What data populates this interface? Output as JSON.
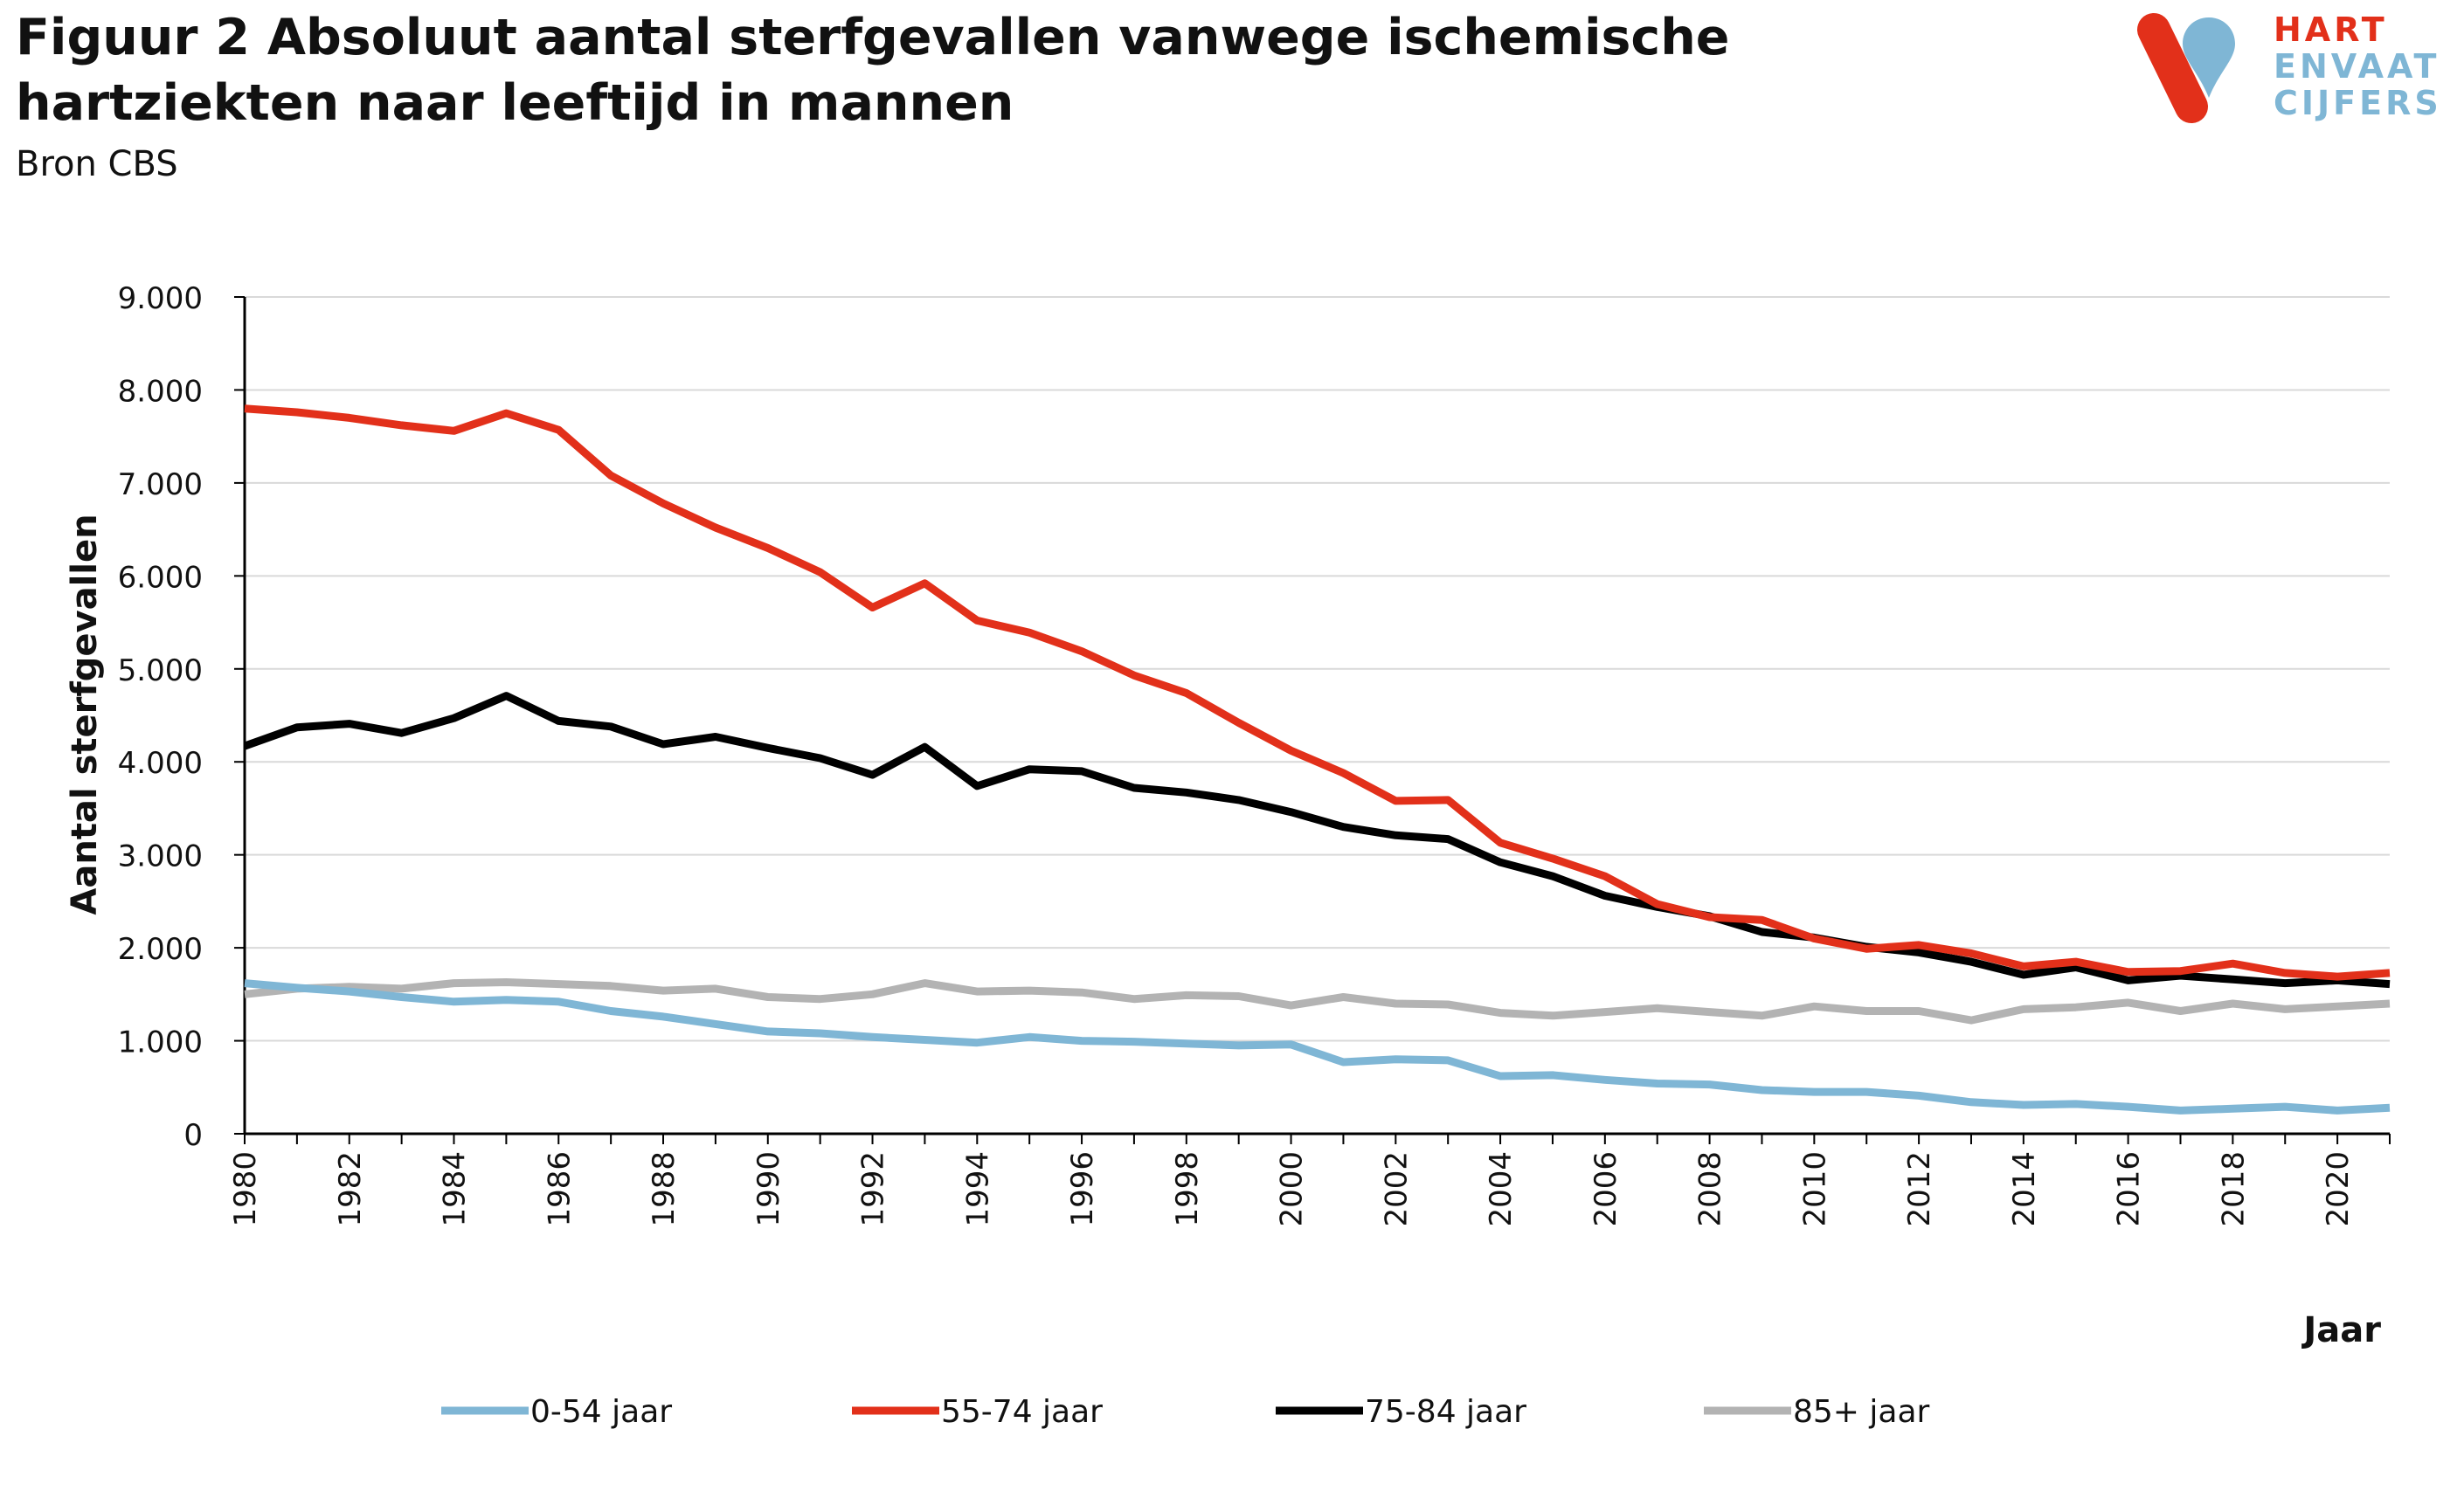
{
  "header": {
    "title": "Figuur 2 Absoluut aantal sterfgevallen vanwege ischemische hartziekten naar leeftijd in mannen",
    "subtitle": "Bron CBS"
  },
  "logo": {
    "line1": "HART",
    "line2a": "EN",
    "line2b": "VAAT",
    "line3": "CIJFERS",
    "colors": {
      "red": "#e2301a",
      "blue": "#7fb6d5"
    }
  },
  "chart_data": {
    "type": "line",
    "title": "",
    "xlabel": "Jaar",
    "ylabel": "Aantal sterfgevallen",
    "ylim": [
      0,
      9000
    ],
    "yticks": [
      0,
      1000,
      2000,
      3000,
      4000,
      5000,
      6000,
      7000,
      8000,
      9000
    ],
    "ytick_labels": [
      "0",
      "1.000",
      "2.000",
      "3.000",
      "4.000",
      "5.000",
      "6.000",
      "7.000",
      "8.000",
      "9.000"
    ],
    "xlim": [
      1980,
      2021
    ],
    "xtick_labels": [
      "1980",
      "1982",
      "1984",
      "1986",
      "1988",
      "1990",
      "1992",
      "1994",
      "1996",
      "1998",
      "2000",
      "2002",
      "2004",
      "2006",
      "2008",
      "2010",
      "2012",
      "2014",
      "2016",
      "2018",
      "2020"
    ],
    "grid": true,
    "legend_position": "bottom",
    "x": [
      1980,
      1981,
      1982,
      1983,
      1984,
      1985,
      1986,
      1987,
      1988,
      1989,
      1990,
      1991,
      1992,
      1993,
      1994,
      1995,
      1996,
      1997,
      1998,
      1999,
      2000,
      2001,
      2002,
      2003,
      2004,
      2005,
      2006,
      2007,
      2008,
      2009,
      2010,
      2011,
      2012,
      2013,
      2014,
      2015,
      2016,
      2017,
      2018,
      2019,
      2020,
      2021
    ],
    "series": [
      {
        "name": "0-54 jaar",
        "color": "#7fb6d5",
        "values": [
          1620,
          1570,
          1530,
          1470,
          1420,
          1440,
          1420,
          1320,
          1260,
          1180,
          1100,
          1080,
          1040,
          1010,
          980,
          1040,
          1000,
          990,
          970,
          950,
          960,
          770,
          800,
          790,
          620,
          630,
          580,
          540,
          530,
          470,
          450,
          450,
          410,
          340,
          310,
          320,
          290,
          250,
          270,
          290,
          250,
          280
        ]
      },
      {
        "name": "55-74 jaar",
        "color": "#e2301a",
        "values": [
          7800,
          7760,
          7700,
          7620,
          7560,
          7750,
          7570,
          7080,
          6780,
          6520,
          6300,
          6040,
          5660,
          5920,
          5520,
          5390,
          5190,
          4930,
          4740,
          4420,
          4120,
          3880,
          3580,
          3590,
          3130,
          2960,
          2770,
          2470,
          2330,
          2300,
          2100,
          1990,
          2030,
          1940,
          1800,
          1850,
          1740,
          1750,
          1830,
          1730,
          1690,
          1730
        ]
      },
      {
        "name": "75-84 jaar",
        "color": "#000000",
        "values": [
          4170,
          4370,
          4410,
          4310,
          4470,
          4710,
          4440,
          4380,
          4190,
          4270,
          4150,
          4040,
          3860,
          4160,
          3740,
          3920,
          3900,
          3720,
          3670,
          3590,
          3460,
          3300,
          3210,
          3170,
          2920,
          2770,
          2560,
          2440,
          2340,
          2170,
          2110,
          2010,
          1950,
          1850,
          1710,
          1790,
          1650,
          1700,
          1660,
          1620,
          1650,
          1610
        ]
      },
      {
        "name": "85+ jaar",
        "color": "#b3b3b3",
        "values": [
          1500,
          1560,
          1580,
          1560,
          1620,
          1630,
          1610,
          1590,
          1540,
          1560,
          1470,
          1450,
          1500,
          1620,
          1530,
          1540,
          1520,
          1450,
          1490,
          1480,
          1380,
          1470,
          1400,
          1390,
          1300,
          1270,
          1310,
          1350,
          1310,
          1270,
          1370,
          1320,
          1320,
          1220,
          1340,
          1360,
          1410,
          1320,
          1400,
          1340,
          1370,
          1400
        ]
      }
    ]
  }
}
